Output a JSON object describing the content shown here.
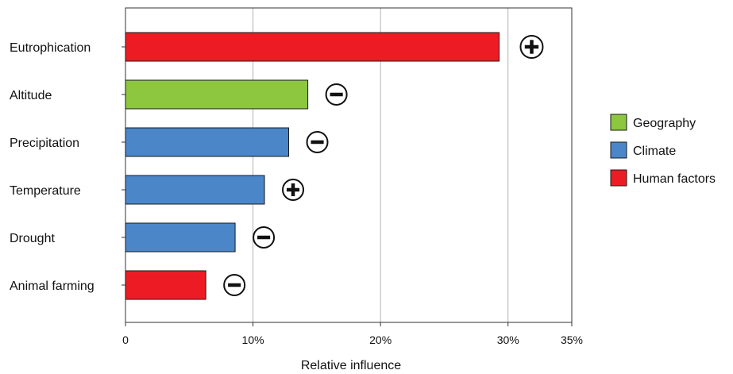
{
  "chart_data": {
    "type": "bar",
    "orientation": "horizontal",
    "categories": [
      "Eutrophication",
      "Altitude",
      "Precipitation",
      "Temperature",
      "Drought",
      "Animal farming"
    ],
    "values": [
      29.3,
      14.3,
      12.8,
      10.9,
      8.6,
      6.3
    ],
    "groups": [
      "Human factors",
      "Geography",
      "Climate",
      "Climate",
      "Climate",
      "Human factors"
    ],
    "signs": [
      "+",
      "-",
      "-",
      "+",
      "-",
      "-"
    ],
    "xlabel": "Relative influence",
    "ylabel": "",
    "xlim": [
      0,
      35
    ],
    "xticks": [
      0,
      10,
      20,
      30,
      35
    ],
    "xtick_labels": [
      "0",
      "10%",
      "20%",
      "30%",
      "35%"
    ],
    "grid": "vertical",
    "legend": {
      "position": "right",
      "items": [
        {
          "name": "Geography",
          "color": "#8dc63f"
        },
        {
          "name": "Climate",
          "color": "#4a86c8"
        },
        {
          "name": "Human factors",
          "color": "#ed1c24"
        }
      ]
    },
    "colors": {
      "Geography": "#8dc63f",
      "Climate": "#4a86c8",
      "Human factors": "#ed1c24"
    }
  }
}
